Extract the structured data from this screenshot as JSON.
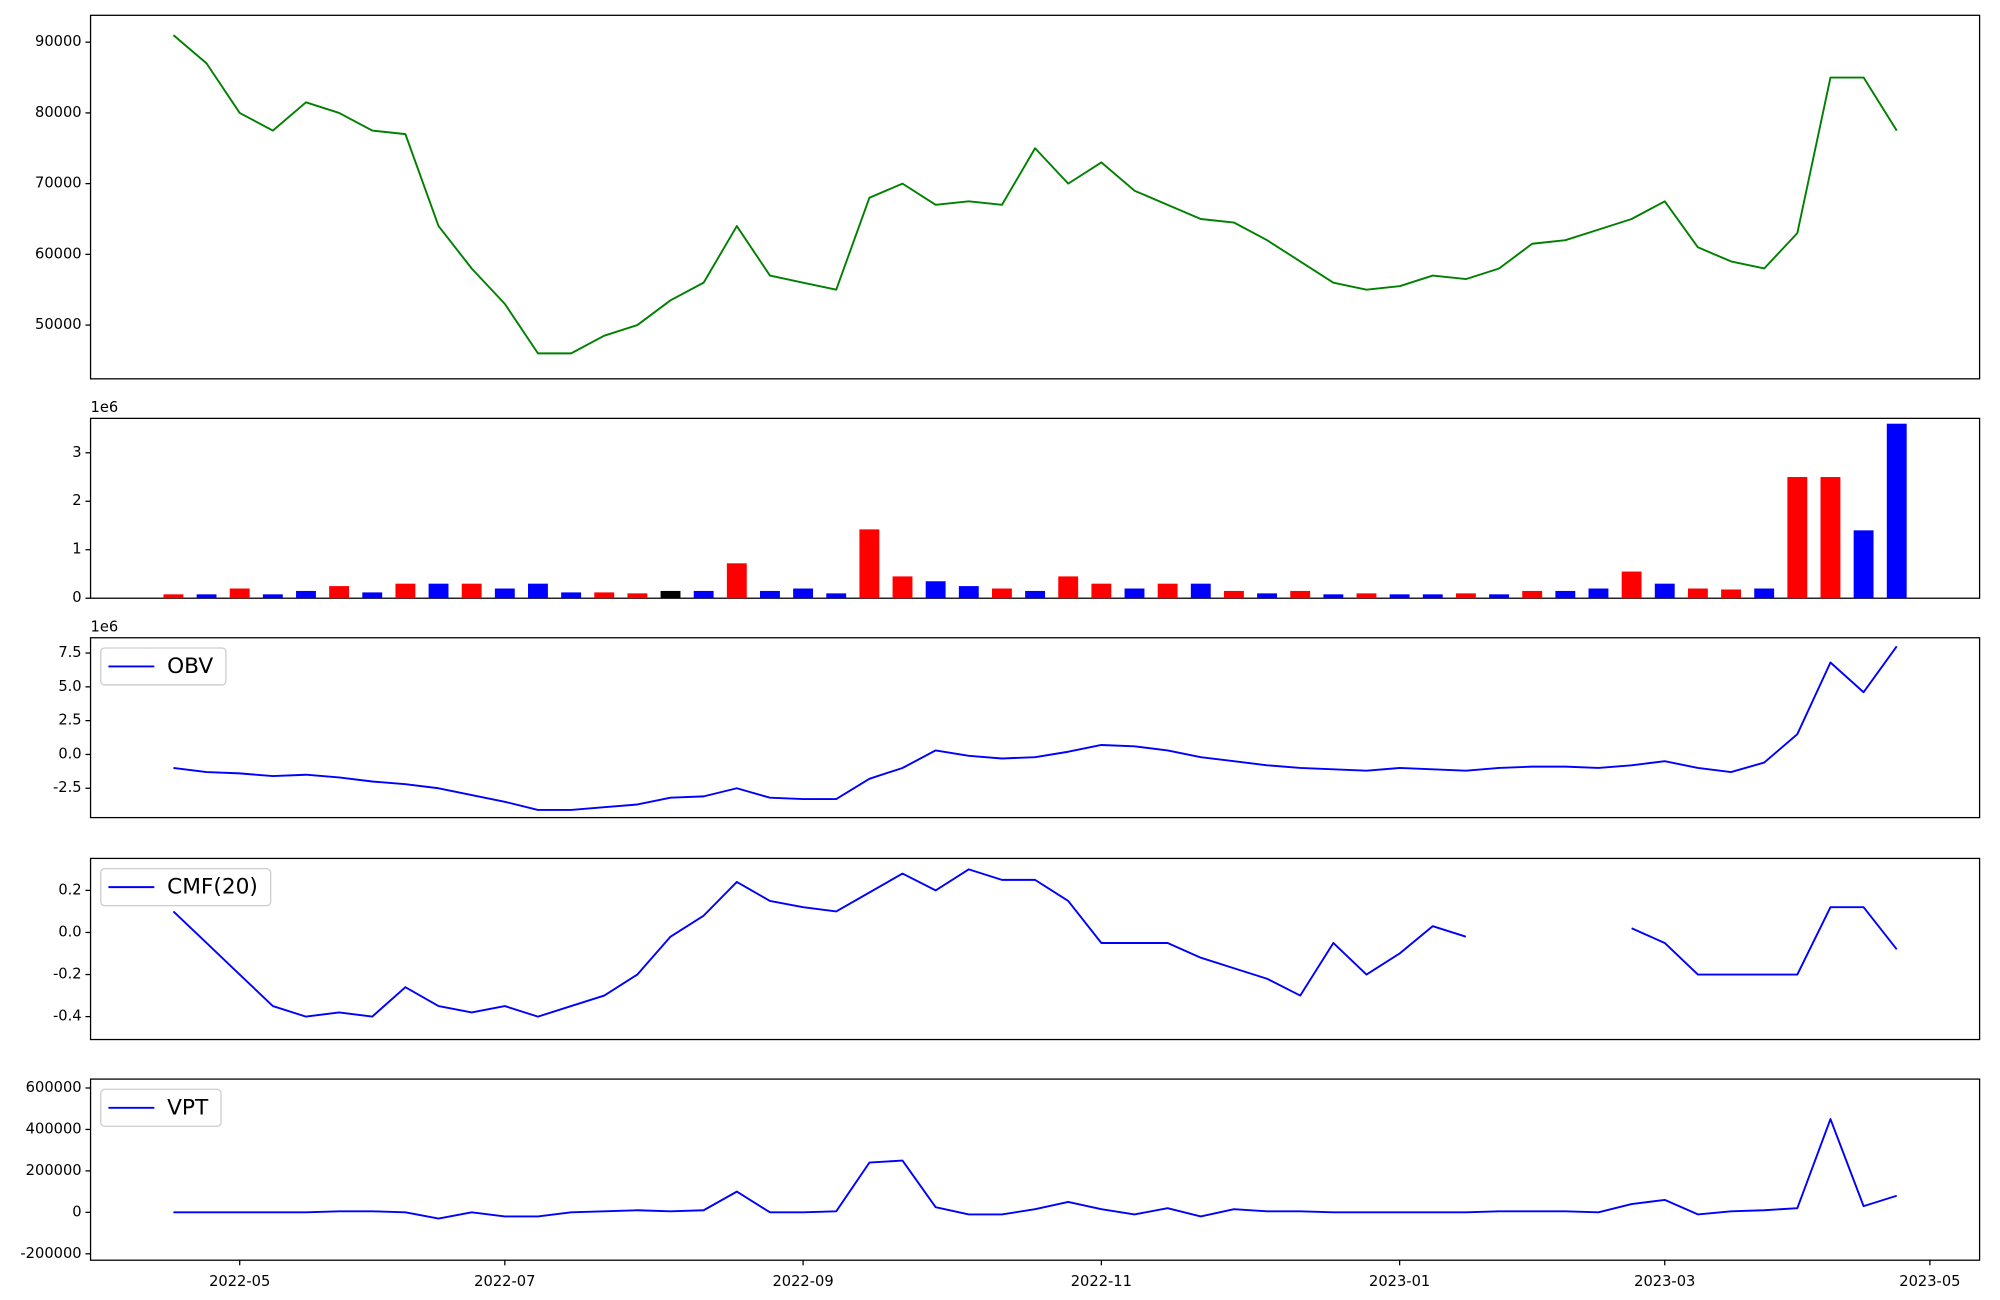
{
  "chart_data": [
    {
      "type": "line",
      "ylim": [
        42400,
        93800
      ],
      "yticks": [
        50000,
        60000,
        70000,
        80000,
        90000
      ],
      "series": [
        {
          "color": "green",
          "values": [
            null,
            null,
            91000,
            87000,
            80000,
            77500,
            81500,
            80000,
            77500,
            77000,
            64000,
            58000,
            53000,
            46000,
            46000,
            48500,
            50000,
            53500,
            56000,
            64000,
            57000,
            56000,
            55000,
            68000,
            70000,
            67000,
            67500,
            67000,
            75000,
            70000,
            73000,
            69000,
            67000,
            65000,
            64500,
            62000,
            59000,
            56000,
            55000,
            55500,
            57000,
            56500,
            58000,
            61500,
            62000,
            63500,
            65000,
            67500,
            61000,
            59000,
            58000,
            63000,
            85000,
            85000,
            77500,
            null,
            null
          ]
        }
      ]
    },
    {
      "type": "bar",
      "offset_label": "1e6",
      "ylim": [
        0,
        3.71
      ],
      "yticks": [
        0,
        1,
        2,
        3
      ],
      "values": [
        null,
        null,
        0.08,
        0.08,
        0.2,
        0.08,
        0.15,
        0.25,
        0.12,
        0.3,
        0.3,
        0.3,
        0.2,
        0.3,
        0.12,
        0.12,
        0.1,
        0.15,
        0.15,
        0.72,
        0.15,
        0.2,
        0.1,
        1.42,
        0.45,
        0.35,
        0.25,
        0.2,
        0.15,
        0.45,
        0.3,
        0.2,
        0.3,
        0.3,
        0.15,
        0.1,
        0.15,
        0.08,
        0.1,
        0.08,
        0.08,
        0.1,
        0.08,
        0.15,
        0.15,
        0.2,
        0.55,
        0.3,
        0.2,
        0.18,
        0.2,
        2.5,
        2.5,
        1.4,
        3.6,
        null,
        null
      ],
      "colors": [
        null,
        null,
        "red",
        "blue",
        "red",
        "blue",
        "blue",
        "red",
        "blue",
        "red",
        "blue",
        "red",
        "blue",
        "blue",
        "blue",
        "red",
        "red",
        "black",
        "blue",
        "red",
        "blue",
        "blue",
        "blue",
        "red",
        "red",
        "blue",
        "blue",
        "red",
        "blue",
        "red",
        "red",
        "blue",
        "red",
        "blue",
        "red",
        "blue",
        "red",
        "blue",
        "red",
        "blue",
        "blue",
        "red",
        "blue",
        "red",
        "blue",
        "blue",
        "red",
        "blue",
        "red",
        "red",
        "blue",
        "red",
        "red",
        "blue",
        "blue",
        null,
        null
      ]
    },
    {
      "type": "line",
      "offset_label": "1e6",
      "ylim": [
        -4.67,
        8.63
      ],
      "yticks": [
        -2.5,
        {
          "value": 0,
          "label": "0.0"
        },
        2.5,
        {
          "value": 5,
          "label": "5.0"
        },
        7.5
      ],
      "series": [
        {
          "name": "OBV",
          "color": "blue",
          "values": [
            null,
            null,
            -1.0,
            -1.3,
            -1.4,
            -1.6,
            -1.5,
            -1.7,
            -2.0,
            -2.2,
            -2.5,
            -3.0,
            -3.5,
            -4.1,
            -4.1,
            -3.9,
            -3.7,
            -3.2,
            -3.1,
            -2.5,
            -3.2,
            -3.3,
            -3.3,
            -1.8,
            -1.0,
            0.3,
            -0.1,
            -0.3,
            -0.2,
            0.2,
            0.7,
            0.6,
            0.3,
            -0.2,
            -0.5,
            -0.8,
            -1.0,
            -1.1,
            -1.2,
            -1.0,
            -1.1,
            -1.2,
            -1.0,
            -0.9,
            -0.9,
            -1.0,
            -0.8,
            -0.5,
            -1.0,
            -1.3,
            -0.6,
            1.5,
            6.8,
            4.6,
            8.0,
            null,
            null
          ]
        }
      ]
    },
    {
      "type": "line",
      "ylim": [
        -0.509,
        0.352
      ],
      "yticks": [
        -0.4,
        -0.2,
        {
          "value": 0,
          "label": "0.0"
        },
        0.2
      ],
      "series": [
        {
          "name": "CMF(20)",
          "color": "blue",
          "values": [
            null,
            null,
            0.1,
            -0.05,
            -0.2,
            -0.35,
            -0.4,
            -0.38,
            -0.4,
            -0.26,
            -0.35,
            -0.38,
            -0.35,
            -0.4,
            -0.35,
            -0.3,
            -0.2,
            -0.02,
            0.08,
            0.24,
            0.15,
            0.12,
            0.1,
            0.19,
            0.28,
            0.2,
            0.3,
            0.25,
            0.25,
            0.15,
            -0.05,
            -0.05,
            -0.05,
            -0.12,
            -0.17,
            -0.22,
            -0.3,
            -0.05,
            -0.2,
            -0.1,
            0.03,
            -0.02,
            null,
            null,
            null,
            null,
            0.02,
            -0.05,
            -0.2,
            -0.2,
            -0.2,
            -0.2,
            0.12,
            0.12,
            -0.08,
            null,
            null
          ]
        }
      ]
    },
    {
      "type": "line",
      "ylim": [
        -231000,
        643000
      ],
      "yticks": [
        -200000,
        0,
        200000,
        400000,
        600000
      ],
      "categories": [
        null,
        null,
        null,
        null,
        "2022-05",
        null,
        null,
        null,
        null,
        null,
        null,
        null,
        "2022-07",
        null,
        null,
        null,
        null,
        null,
        null,
        null,
        null,
        "2022-09",
        null,
        null,
        null,
        null,
        null,
        null,
        null,
        null,
        "2022-11",
        null,
        null,
        null,
        null,
        null,
        null,
        null,
        null,
        "2023-01",
        null,
        null,
        null,
        null,
        null,
        null,
        null,
        "2023-03",
        null,
        null,
        null,
        null,
        null,
        null,
        null,
        "2023-05",
        null
      ],
      "series": [
        {
          "name": "VPT",
          "color": "blue",
          "values": [
            null,
            null,
            0,
            0,
            0,
            0,
            0,
            5000,
            5000,
            0,
            -30000,
            0,
            -20000,
            -20000,
            0,
            5000,
            10000,
            5000,
            10000,
            100000,
            0,
            0,
            5000,
            240000,
            250000,
            25000,
            -10000,
            -10000,
            15000,
            50000,
            15000,
            -10000,
            20000,
            -20000,
            15000,
            5000,
            5000,
            0,
            0,
            0,
            0,
            0,
            5000,
            5000,
            5000,
            0,
            40000,
            60000,
            -10000,
            5000,
            10000,
            20000,
            450000,
            30000,
            80000,
            null,
            null
          ]
        }
      ]
    }
  ]
}
